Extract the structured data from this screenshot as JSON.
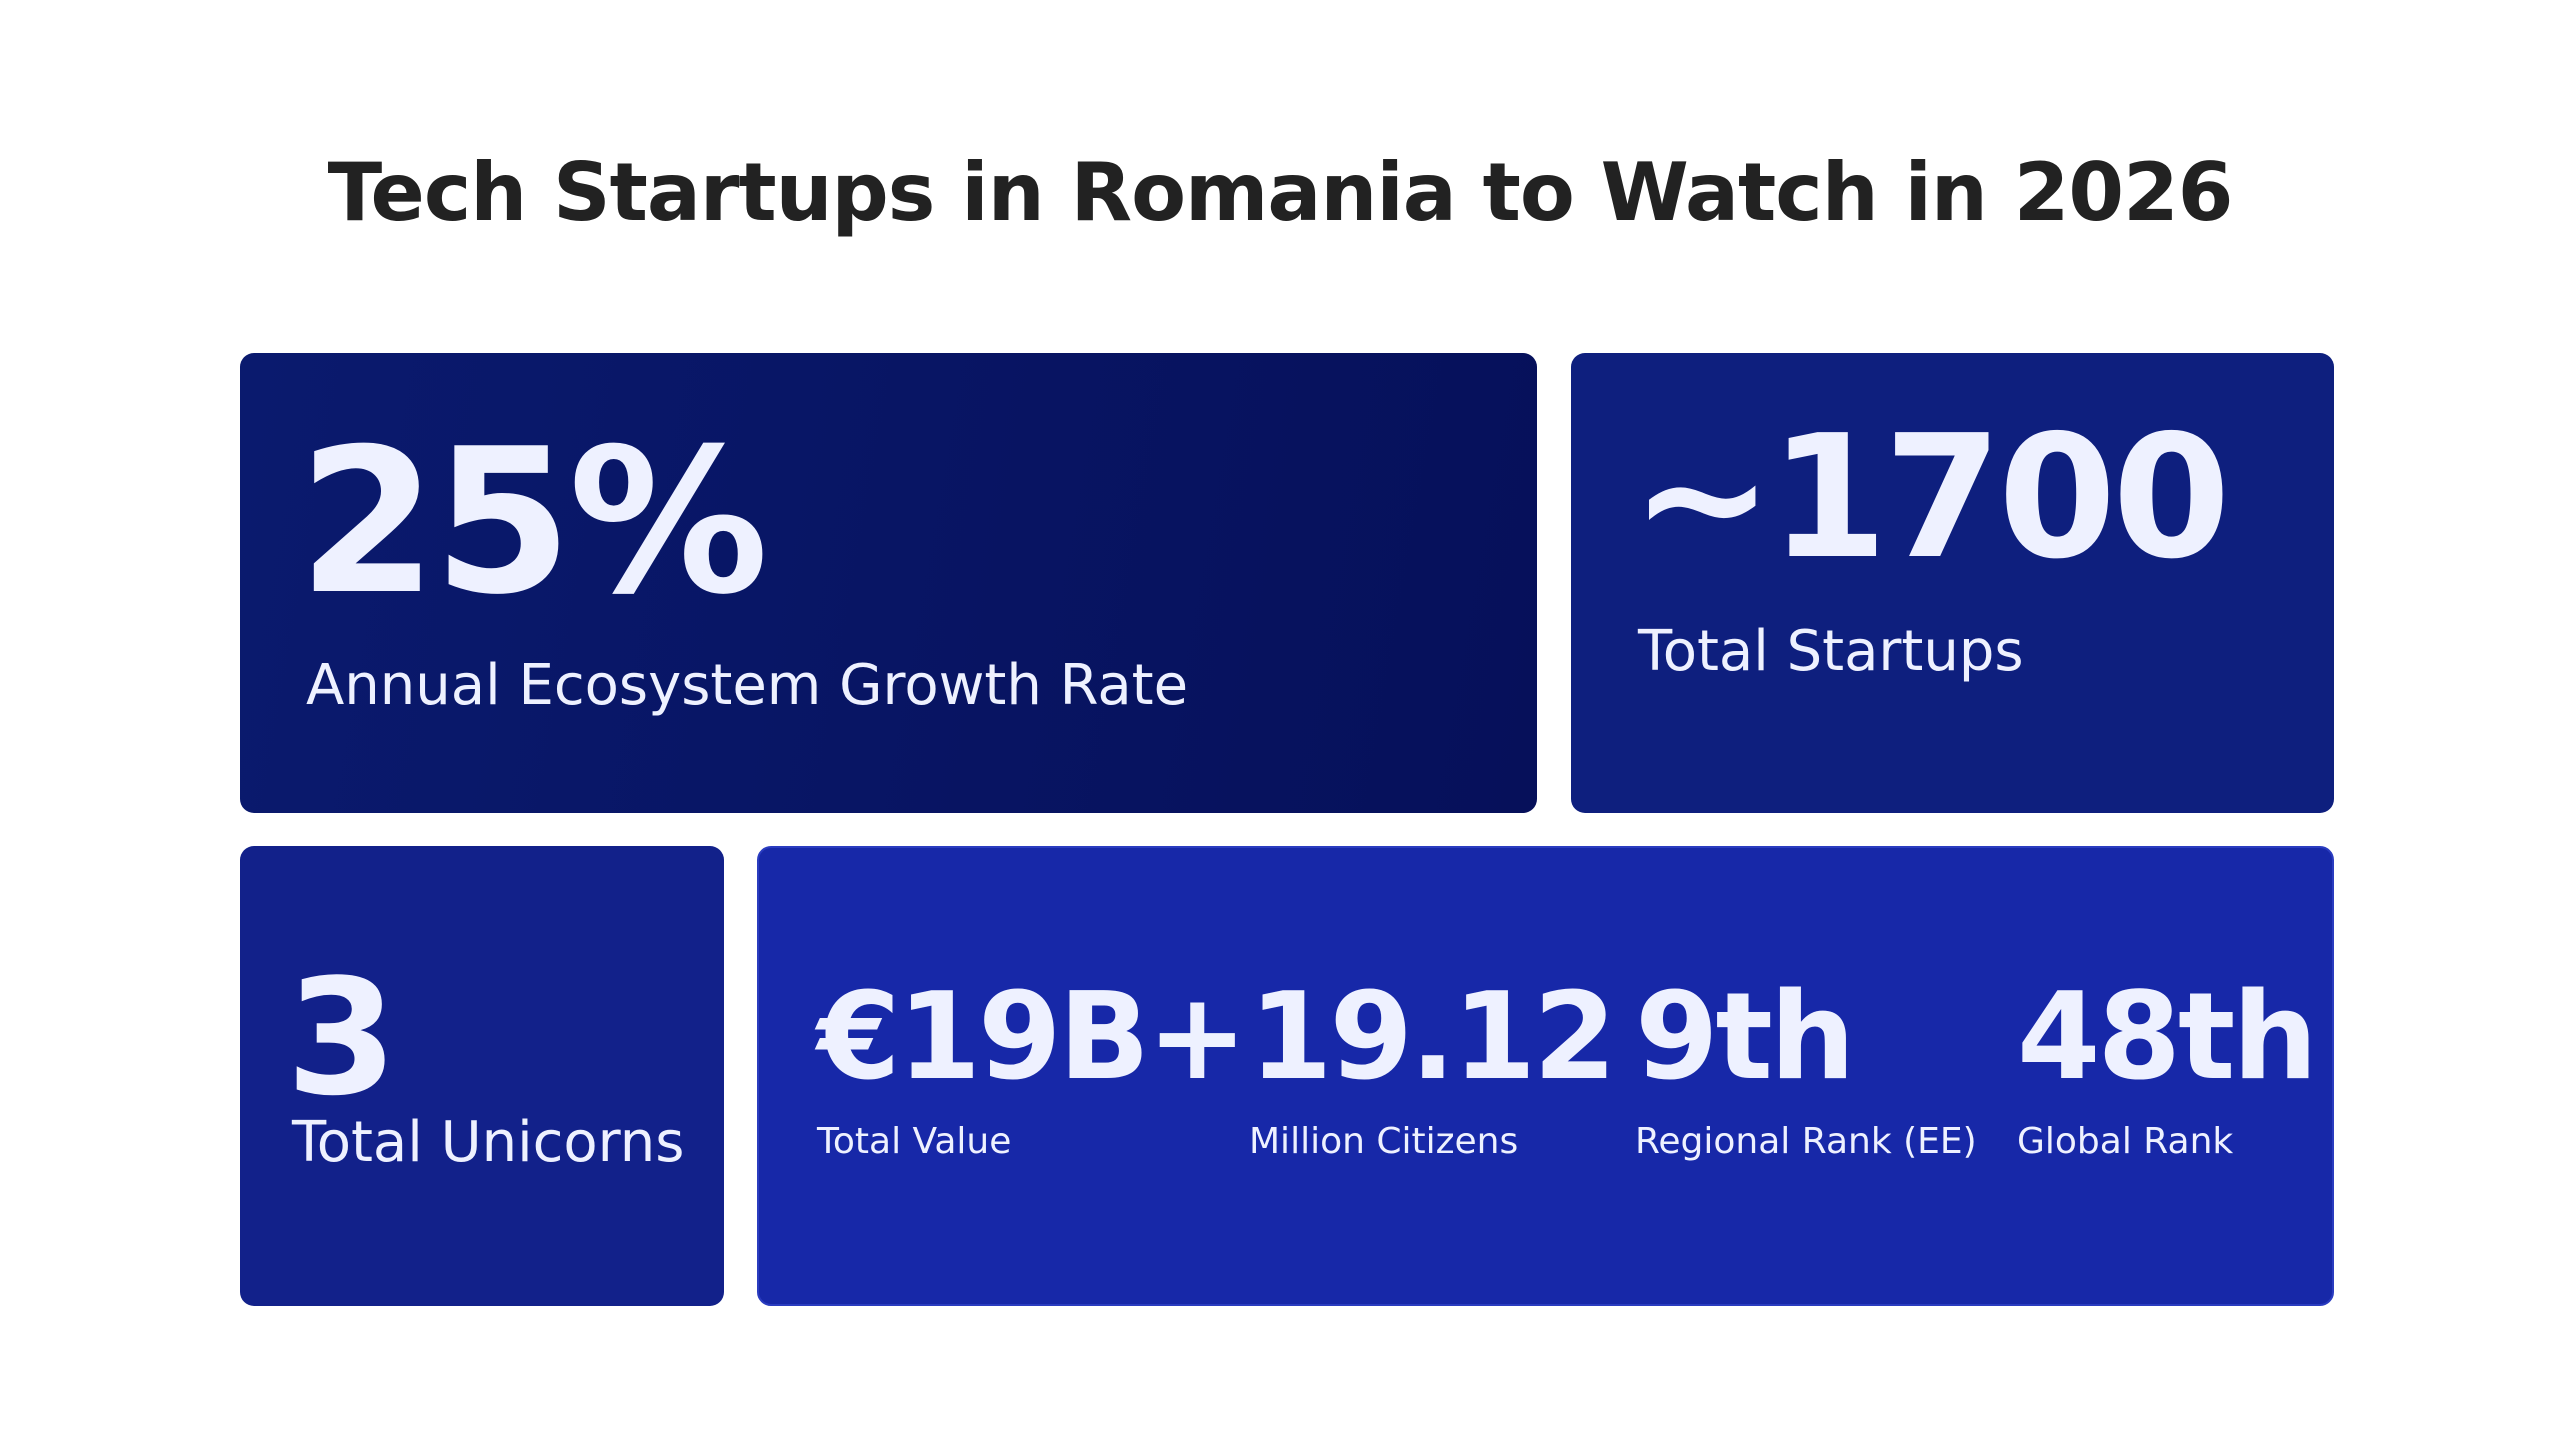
{
  "title": "Tech Startups in Romania to Watch in 2026",
  "cards": {
    "growth": {
      "value": "25%",
      "label": "Annual Ecosystem Growth Rate"
    },
    "startups": {
      "value": "~1700",
      "label": "Total Startups"
    },
    "unicorns": {
      "value": "3",
      "label": "Total Unicorns"
    }
  },
  "stats": [
    {
      "value": "€19B+",
      "label": "Total Value"
    },
    {
      "value": "19.12",
      "label": "Million Citizens"
    },
    {
      "value": "9th",
      "label": "Regional Rank (EE)"
    },
    {
      "value": "48th",
      "label": "Global Rank"
    }
  ],
  "colors": {
    "title": "#222222",
    "card_dark": "#06105a",
    "card_mid": "#0e1f7e",
    "card_unicorns": "#12218a",
    "card_bright": "#1728a8",
    "text_light": "#eef1ff"
  }
}
